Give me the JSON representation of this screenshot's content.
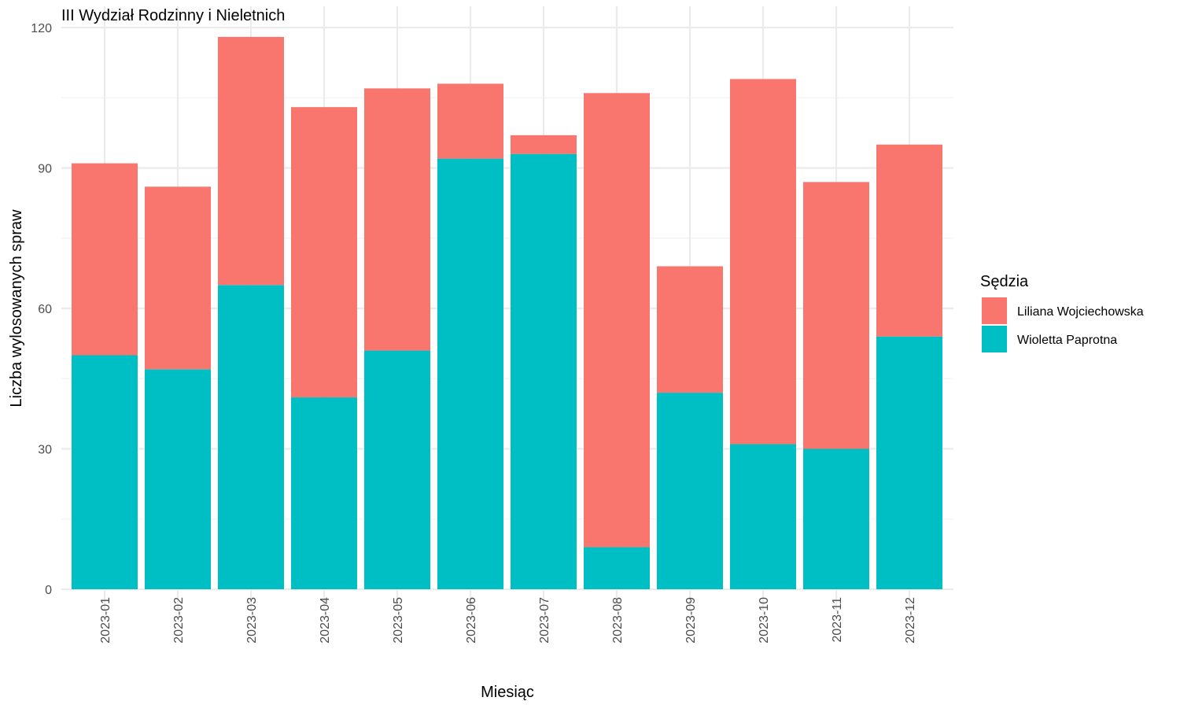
{
  "chart_data": {
    "type": "bar",
    "stacked": true,
    "title": "III Wydział Rodzinny i Nieletnich",
    "xlabel": "Miesiąc",
    "ylabel": "Liczba wylosowanych spraw",
    "ylim": [
      0,
      120
    ],
    "yticks": [
      0,
      30,
      60,
      90,
      120
    ],
    "grid": true,
    "legend_title": "Sędzia",
    "legend_position": "right",
    "categories": [
      "2023-01",
      "2023-02",
      "2023-03",
      "2023-04",
      "2023-05",
      "2023-06",
      "2023-07",
      "2023-08",
      "2023-09",
      "2023-10",
      "2023-11",
      "2023-12"
    ],
    "series": [
      {
        "name": "Wioletta Paprotna",
        "color": "#00BFC4",
        "values": [
          50,
          47,
          65,
          41,
          51,
          92,
          93,
          9,
          42,
          31,
          30,
          54
        ]
      },
      {
        "name": "Liliana Wojciechowska",
        "color": "#F8766D",
        "values": [
          41,
          39,
          53,
          62,
          56,
          16,
          4,
          97,
          27,
          78,
          57,
          41
        ]
      }
    ],
    "legend_order": [
      "Liliana Wojciechowska",
      "Wioletta Paprotna"
    ]
  }
}
